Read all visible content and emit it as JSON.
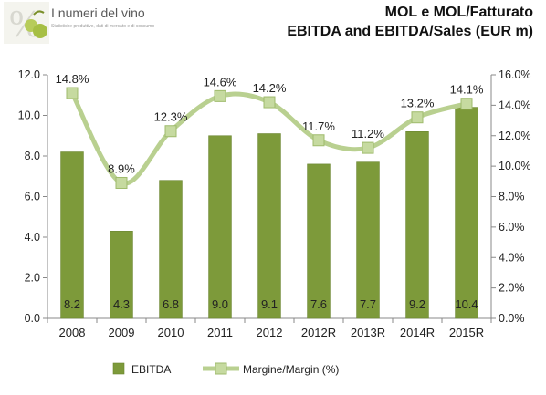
{
  "brand": {
    "name": "I numeri del vino",
    "tagline": "Statistiche produttive, dati di mercato e di consumo"
  },
  "titles": {
    "italian": "MOL e MOL/Fatturato",
    "english": "EBITDA and EBITDA/Sales (EUR m)"
  },
  "colors": {
    "bar": "#7d9a3a",
    "bar_edge": "#6a8530",
    "line": "#b9d090",
    "marker_fill": "#c6daa0",
    "marker_edge": "#9fbb6c",
    "axis": "#888888"
  },
  "chart_data": {
    "type": "bar",
    "categories": [
      "2008",
      "2009",
      "2010",
      "2011",
      "2012",
      "2012R",
      "2013R",
      "2014R",
      "2015R"
    ],
    "series": [
      {
        "name": "EBITDA",
        "type": "bar",
        "axis": "left",
        "values": [
          8.2,
          4.3,
          6.8,
          9.0,
          9.1,
          7.6,
          7.7,
          9.2,
          10.4
        ],
        "labels": [
          "8.2",
          "4.3",
          "6.8",
          "9.0",
          "9.1",
          "7.6",
          "7.7",
          "9.2",
          "10.4"
        ]
      },
      {
        "name": "Margine/Margin (%)",
        "type": "line",
        "axis": "right",
        "values": [
          14.8,
          8.9,
          12.3,
          14.6,
          14.2,
          11.7,
          11.2,
          13.2,
          14.1
        ],
        "labels": [
          "14.8%",
          "8.9%",
          "12.3%",
          "14.6%",
          "14.2%",
          "11.7%",
          "11.2%",
          "13.2%",
          "14.1%"
        ]
      }
    ],
    "y_left": {
      "lim": [
        0,
        12
      ],
      "ticks": [
        0,
        2,
        4,
        6,
        8,
        10,
        12
      ],
      "tick_labels": [
        "0.0",
        "2.0",
        "4.0",
        "6.0",
        "8.0",
        "10.0",
        "12.0"
      ]
    },
    "y_right": {
      "lim": [
        0,
        16
      ],
      "ticks": [
        0,
        2,
        4,
        6,
        8,
        10,
        12,
        14,
        16
      ],
      "tick_labels": [
        "0.0%",
        "2.0%",
        "4.0%",
        "6.0%",
        "8.0%",
        "10.0%",
        "12.0%",
        "14.0%",
        "16.0%"
      ]
    },
    "grid": false,
    "legend": "bottom"
  }
}
